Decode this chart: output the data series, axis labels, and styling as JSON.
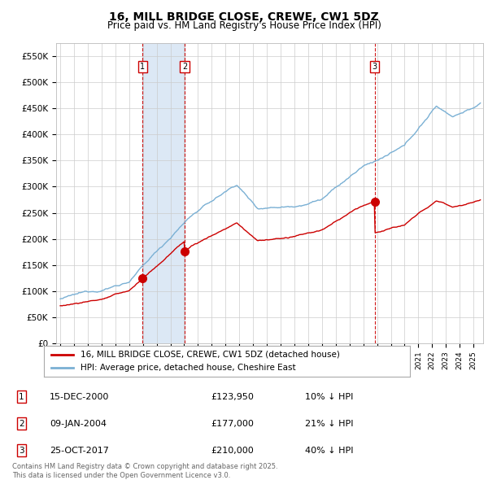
{
  "title": "16, MILL BRIDGE CLOSE, CREWE, CW1 5DZ",
  "subtitle": "Price paid vs. HM Land Registry's House Price Index (HPI)",
  "yticks": [
    0,
    50000,
    100000,
    150000,
    200000,
    250000,
    300000,
    350000,
    400000,
    450000,
    500000,
    550000
  ],
  "ytick_labels": [
    "£0",
    "£50K",
    "£100K",
    "£150K",
    "£200K",
    "£250K",
    "£300K",
    "£350K",
    "£400K",
    "£450K",
    "£500K",
    "£550K"
  ],
  "xmin": 1994.7,
  "xmax": 2025.7,
  "ymin": 0,
  "ymax": 575000,
  "red_line_color": "#cc0000",
  "blue_line_color": "#7ab0d4",
  "grid_color": "#cccccc",
  "background_color": "#ffffff",
  "shade_color": "#dce8f5",
  "transactions": [
    {
      "num": 1,
      "date_label": "15-DEC-2000",
      "year": 2000.96,
      "price": 123950,
      "price_str": "£123,950",
      "pct": "10%",
      "dir": "↓"
    },
    {
      "num": 2,
      "date_label": "09-JAN-2004",
      "year": 2004.03,
      "price": 177000,
      "price_str": "£177,000",
      "pct": "21%",
      "dir": "↓"
    },
    {
      "num": 3,
      "date_label": "25-OCT-2017",
      "year": 2017.82,
      "price": 210000,
      "price_str": "£210,000",
      "pct": "40%",
      "dir": "↓"
    }
  ],
  "footnote": "Contains HM Land Registry data © Crown copyright and database right 2025.\nThis data is licensed under the Open Government Licence v3.0.",
  "legend_line1": "16, MILL BRIDGE CLOSE, CREWE, CW1 5DZ (detached house)",
  "legend_line2": "HPI: Average price, detached house, Cheshire East"
}
